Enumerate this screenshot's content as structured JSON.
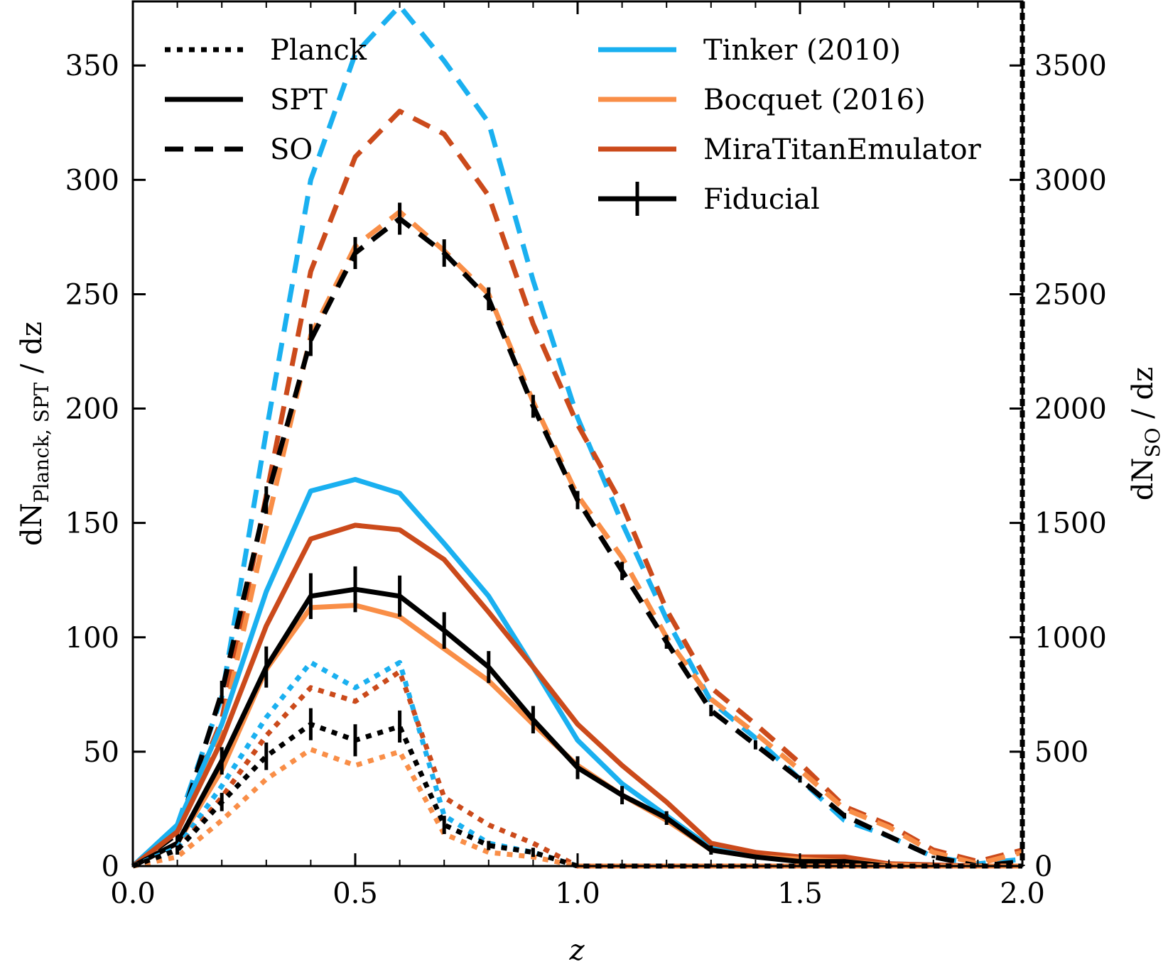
{
  "chart_data": {
    "type": "line",
    "xlabel": "z",
    "ylabel_left": {
      "prefix": "dN",
      "subscript": "Planck, SPT",
      "suffix": " / dz"
    },
    "ylabel_right": {
      "prefix": "dN",
      "subscript": "SO",
      "suffix": " / dz"
    },
    "xlim": [
      0,
      2
    ],
    "ylim_left": [
      0,
      378
    ],
    "ylim_right": [
      0,
      3780
    ],
    "x_ticks": [
      0.0,
      0.5,
      1.0,
      1.5,
      2.0
    ],
    "x_tick_labels": [
      "0.0",
      "0.5",
      "1.0",
      "1.5",
      "2.0"
    ],
    "y_left_ticks": [
      0,
      50,
      100,
      150,
      200,
      250,
      300,
      350
    ],
    "y_left_tick_labels": [
      "0",
      "50",
      "100",
      "150",
      "200",
      "250",
      "300",
      "350"
    ],
    "y_right_ticks": [
      0,
      500,
      1000,
      1500,
      2000,
      2500,
      3000,
      3500
    ],
    "y_right_tick_labels": [
      "0",
      "500",
      "1000",
      "1500",
      "2000",
      "2500",
      "3000",
      "3500"
    ],
    "grid": false,
    "legend_location": "top",
    "survey_legend": [
      {
        "label": "Planck",
        "style": "dotted"
      },
      {
        "label": "SPT",
        "style": "solid"
      },
      {
        "label": "SO",
        "style": "dashed"
      }
    ],
    "model_legend": [
      {
        "label": "Tinker (2010)",
        "color": "#1ab0f0"
      },
      {
        "label": "Bocquet (2016)",
        "color": "#f98e47"
      },
      {
        "label": "MiraTitanEmulator",
        "color": "#cb4a1b"
      },
      {
        "label": "Fiducial",
        "color": "#000000",
        "errorbar": true
      }
    ],
    "series": [
      {
        "name": "Tinker (2010) - SO",
        "survey": "SO",
        "model": "Tinker (2010)",
        "style": "dashed",
        "color": "#1ab0f0",
        "axis": "right",
        "x": [
          0,
          0.1,
          0.2,
          0.3,
          0.4,
          0.5,
          0.6,
          0.7,
          0.8,
          0.9,
          1.0,
          1.1,
          1.2,
          1.3,
          1.4,
          1.5,
          1.6,
          1.7,
          1.8,
          1.9,
          2.0
        ],
        "values": [
          0,
          180,
          740,
          1900,
          3000,
          3550,
          3760,
          3520,
          3250,
          2560,
          1960,
          1500,
          1080,
          720,
          560,
          380,
          200,
          130,
          40,
          10,
          30
        ]
      },
      {
        "name": "MiraTitanEmulator - SO",
        "survey": "SO",
        "model": "MiraTitanEmulator",
        "style": "dashed",
        "color": "#cb4a1b",
        "axis": "right",
        "x": [
          0,
          0.1,
          0.2,
          0.3,
          0.4,
          0.5,
          0.6,
          0.7,
          0.8,
          0.9,
          1.0,
          1.1,
          1.2,
          1.3,
          1.4,
          1.5,
          1.6,
          1.7,
          1.8,
          1.9,
          2.0
        ],
        "values": [
          0,
          160,
          640,
          1620,
          2600,
          3100,
          3300,
          3200,
          2930,
          2370,
          1930,
          1580,
          1120,
          780,
          620,
          450,
          260,
          180,
          70,
          20,
          70
        ]
      },
      {
        "name": "Bocquet (2016) - SO",
        "survey": "SO",
        "model": "Bocquet (2016)",
        "style": "dashed",
        "color": "#f98e47",
        "axis": "right",
        "x": [
          0,
          0.1,
          0.2,
          0.3,
          0.4,
          0.5,
          0.6,
          0.7,
          0.8,
          0.9,
          1.0,
          1.1,
          1.2,
          1.3,
          1.4,
          1.5,
          1.6,
          1.7,
          1.8,
          1.9,
          2.0
        ],
        "values": [
          0,
          150,
          600,
          1480,
          2320,
          2710,
          2860,
          2690,
          2500,
          2030,
          1620,
          1350,
          1000,
          730,
          580,
          420,
          250,
          170,
          60,
          10,
          60
        ]
      },
      {
        "name": "Fiducial - SO",
        "survey": "SO",
        "model": "Fiducial",
        "style": "dashed",
        "color": "#000000",
        "axis": "right",
        "x": [
          0,
          0.1,
          0.2,
          0.3,
          0.4,
          0.5,
          0.6,
          0.7,
          0.8,
          0.9,
          1.0,
          1.1,
          1.2,
          1.3,
          1.4,
          1.5,
          1.6,
          1.7,
          1.8,
          1.9,
          2.0
        ],
        "values": [
          0,
          140,
          760,
          1600,
          2300,
          2680,
          2830,
          2680,
          2480,
          2010,
          1600,
          1290,
          980,
          680,
          530,
          380,
          220,
          130,
          40,
          0,
          20
        ],
        "errors": [
          10,
          40,
          50,
          60,
          70,
          70,
          70,
          60,
          50,
          50,
          40,
          40,
          30,
          25,
          20,
          15,
          12,
          8,
          5,
          4,
          4
        ]
      },
      {
        "name": "Tinker (2010) - SPT",
        "survey": "SPT",
        "model": "Tinker (2010)",
        "style": "solid",
        "color": "#1ab0f0",
        "axis": "left",
        "x": [
          0,
          0.1,
          0.2,
          0.3,
          0.4,
          0.5,
          0.6,
          0.7,
          0.8,
          0.9,
          1.0,
          1.1,
          1.2,
          1.3,
          1.4,
          1.5,
          1.6,
          1.7,
          1.8,
          1.9,
          2.0
        ],
        "values": [
          0,
          18,
          62,
          120,
          164,
          169,
          163,
          141,
          118,
          87,
          55,
          36,
          22,
          8,
          5,
          4,
          3,
          1,
          0.5,
          0,
          0
        ]
      },
      {
        "name": "MiraTitanEmulator - SPT",
        "survey": "SPT",
        "model": "MiraTitanEmulator",
        "style": "solid",
        "color": "#cb4a1b",
        "axis": "left",
        "x": [
          0,
          0.1,
          0.2,
          0.3,
          0.4,
          0.5,
          0.6,
          0.7,
          0.8,
          0.9,
          1.0,
          1.1,
          1.2,
          1.3,
          1.4,
          1.5,
          1.6,
          1.7,
          1.8,
          1.9,
          2.0
        ],
        "values": [
          0,
          15,
          55,
          105,
          143,
          149,
          147,
          134,
          111,
          87,
          62,
          44,
          28,
          10,
          6,
          4,
          4,
          1,
          0.5,
          0,
          0
        ]
      },
      {
        "name": "Bocquet (2016) - SPT",
        "survey": "SPT",
        "model": "Bocquet (2016)",
        "style": "solid",
        "color": "#f98e47",
        "axis": "left",
        "x": [
          0,
          0.1,
          0.2,
          0.3,
          0.4,
          0.5,
          0.6,
          0.7,
          0.8,
          0.9,
          1.0,
          1.1,
          1.2,
          1.3,
          1.4,
          1.5,
          1.6,
          1.7,
          1.8,
          1.9,
          2.0
        ],
        "values": [
          0,
          10,
          42,
          86,
          113,
          114,
          109,
          95,
          81,
          62,
          44,
          31,
          20,
          7,
          4,
          3,
          2,
          0.5,
          0,
          0,
          0
        ]
      },
      {
        "name": "Fiducial - SPT",
        "survey": "SPT",
        "model": "Fiducial",
        "style": "solid",
        "color": "#000000",
        "axis": "left",
        "x": [
          0,
          0.1,
          0.2,
          0.3,
          0.4,
          0.5,
          0.6,
          0.7,
          0.8,
          0.9,
          1.0,
          1.1,
          1.2,
          1.3,
          1.4,
          1.5,
          1.6,
          1.7,
          1.8,
          1.9,
          2.0
        ],
        "values": [
          0,
          10,
          46,
          87,
          118,
          121,
          118,
          103,
          87,
          64,
          43,
          31,
          21,
          7,
          4,
          2,
          2,
          0,
          0,
          0,
          0
        ],
        "errors": [
          1,
          3,
          6,
          9,
          10,
          10,
          9,
          8,
          7,
          6,
          5,
          4,
          3,
          2,
          1,
          1,
          1,
          0.5,
          0.5,
          0.5,
          0.5
        ]
      },
      {
        "name": "Tinker (2010) - Planck",
        "survey": "Planck",
        "model": "Tinker (2010)",
        "style": "dotted",
        "color": "#1ab0f0",
        "axis": "left",
        "x": [
          0,
          0.1,
          0.2,
          0.3,
          0.4,
          0.5,
          0.6,
          0.7,
          0.8,
          0.9,
          1.0,
          1.1,
          1.2,
          1.3,
          1.4,
          1.5,
          1.6,
          1.7,
          1.8,
          1.9,
          2.0
        ],
        "values": [
          0,
          8,
          35,
          65,
          89,
          78,
          89,
          22,
          10,
          6,
          0,
          0,
          0,
          0,
          0,
          0,
          0,
          0,
          0,
          0,
          0
        ]
      },
      {
        "name": "MiraTitanEmulator - Planck",
        "survey": "Planck",
        "model": "MiraTitanEmulator",
        "style": "dotted",
        "color": "#cb4a1b",
        "axis": "left",
        "x": [
          0,
          0.1,
          0.2,
          0.3,
          0.4,
          0.5,
          0.6,
          0.7,
          0.8,
          0.9,
          1.0,
          1.1,
          1.2,
          1.3,
          1.4,
          1.5,
          1.6,
          1.7,
          1.8,
          1.9,
          2.0
        ],
        "values": [
          0,
          7,
          30,
          57,
          78,
          72,
          85,
          30,
          18,
          10,
          0,
          0,
          0,
          0,
          0,
          0,
          0,
          0,
          0,
          0,
          0
        ]
      },
      {
        "name": "Bocquet (2016) - Planck",
        "survey": "Planck",
        "model": "Bocquet (2016)",
        "style": "dotted",
        "color": "#f98e47",
        "axis": "left",
        "x": [
          0,
          0.1,
          0.2,
          0.3,
          0.4,
          0.5,
          0.6,
          0.7,
          0.8,
          0.9,
          1.0,
          1.1,
          1.2,
          1.3,
          1.4,
          1.5,
          1.6,
          1.7,
          1.8,
          1.9,
          2.0
        ],
        "values": [
          0,
          4,
          20,
          38,
          51,
          44,
          50,
          14,
          6,
          4,
          0,
          0,
          0,
          0,
          0,
          0,
          0,
          0,
          0,
          0,
          0
        ]
      },
      {
        "name": "Fiducial - Planck",
        "survey": "Planck",
        "model": "Fiducial",
        "style": "dotted",
        "color": "#000000",
        "axis": "left",
        "x": [
          0,
          0.1,
          0.2,
          0.3,
          0.4,
          0.5,
          0.6,
          0.7,
          0.8,
          0.9,
          1.0,
          1.1,
          1.2,
          1.3,
          1.4,
          1.5,
          1.6,
          1.7,
          1.8,
          1.9,
          2.0
        ],
        "values": [
          0,
          7,
          28,
          48,
          62,
          55,
          61,
          18,
          9,
          6,
          0,
          0,
          0,
          0,
          0,
          0,
          0,
          0,
          0,
          0,
          0
        ],
        "errors": [
          0.5,
          2,
          4,
          6,
          7,
          7,
          7,
          4,
          2,
          2,
          0.5,
          0.5,
          0.5,
          0.5,
          0.5,
          0.5,
          0.5,
          0.5,
          0.5,
          0.5,
          0.5
        ]
      }
    ]
  }
}
